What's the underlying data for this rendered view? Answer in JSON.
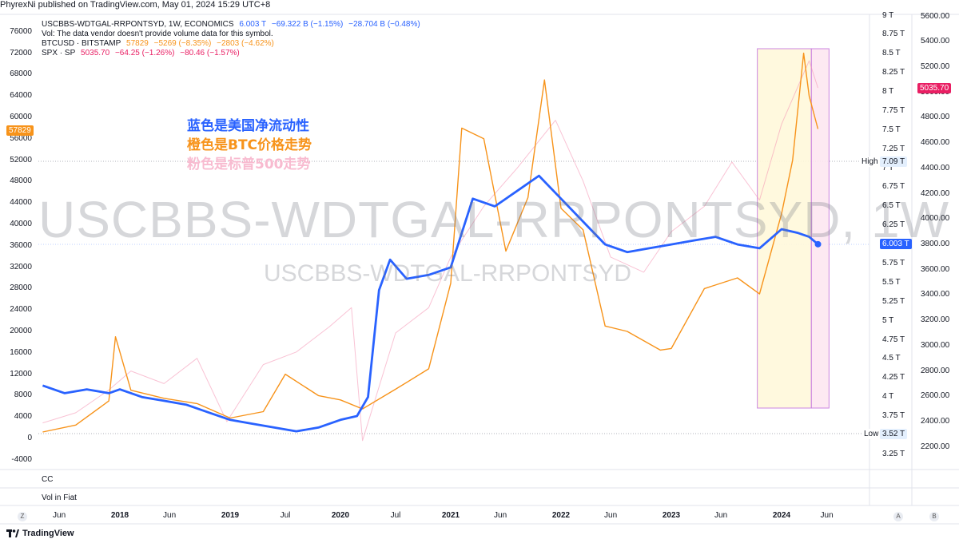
{
  "header": {
    "publish_text": "PhyrexNi published on TradingView.com, May 01, 2024 15:29 UTC+8"
  },
  "legend": {
    "line1": {
      "symbol": "USCBBS-WDTGAL-RRPONTSYD, 1W, ECONOMICS",
      "value": "6.003 T",
      "change": "−69.322 B (−1.15%)",
      "change2": "−28.704 B (−0.48%)"
    },
    "line2": {
      "text": "Vol: The data vendor doesn't provide volume data for this symbol."
    },
    "line3": {
      "symbol": "BTCUSD · BITSTAMP",
      "value": "57829",
      "change": "−5269 (−8.35%)",
      "change2": "−2803 (−4.62%)"
    },
    "line4": {
      "symbol": "SPX · SP",
      "value": "5035.70",
      "change": "−64.25 (−1.26%)",
      "change2": "−80.46 (−1.57%)"
    }
  },
  "annotations": {
    "blue": "蓝色是美国净流动性",
    "orange": "橙色是BTC价格走势",
    "pink": "粉色是标普500走势"
  },
  "watermark": {
    "big": "USCBBS-WDTGAL-RRPONTSYD, 1W",
    "small": "USCBBS-WDTGAL-RRPONTSYD"
  },
  "panes": {
    "cc": "CC",
    "vol": "Vol in Fiat"
  },
  "badges": {
    "btc_last": "57829",
    "spx_last": "5035.70",
    "liq_last": "6.003 T",
    "high_label": "High",
    "high_value": "7.09 T",
    "low_label": "Low",
    "low_value": "3.52 T"
  },
  "footer": {
    "logo_text": "TradingView",
    "z_btn": "Z",
    "a_btn": "A",
    "b_btn": "B"
  },
  "colors": {
    "liquidity": "#2962ff",
    "btc": "#f7931a",
    "spx": "#f48fb1",
    "highlight": "#fff9db",
    "box_border": "#c678dd",
    "badge_spx": "#e91e63"
  },
  "chart_data": {
    "type": "line",
    "title": "",
    "x_ticks": [
      "Jun",
      "2018",
      "Jun",
      "2019",
      "Jul",
      "2020",
      "Jul",
      "2021",
      "Jun",
      "2022",
      "Jun",
      "2023",
      "Jun",
      "2024",
      "Jun"
    ],
    "axes": {
      "left_btc": {
        "ticks": [
          "-4000",
          "0",
          "4000",
          "8000",
          "12000",
          "16000",
          "20000",
          "24000",
          "28000",
          "32000",
          "36000",
          "40000",
          "44000",
          "48000",
          "52000",
          "56000",
          "60000",
          "64000",
          "68000",
          "72000",
          "76000"
        ],
        "range": [
          -4000,
          76000
        ]
      },
      "right_liquidity": {
        "ticks": [
          "3.25 T",
          "3.52 T",
          "3.75 T",
          "4 T",
          "4.25 T",
          "4.5 T",
          "4.75 T",
          "5 T",
          "5.25 T",
          "5.5 T",
          "5.75 T",
          "6 T",
          "6.25 T",
          "6.5 T",
          "6.75 T",
          "7 T",
          "7.25 T",
          "7.5 T",
          "7.75 T",
          "8 T",
          "8.25 T",
          "8.5 T",
          "8.75 T",
          "9 T"
        ],
        "range": [
          3.25,
          9.0
        ]
      },
      "right_spx": {
        "ticks": [
          "2200.00",
          "2400.00",
          "2600.00",
          "2800.00",
          "3000.00",
          "3200.00",
          "3400.00",
          "3600.00",
          "3800.00",
          "4000.00",
          "4200.00",
          "4400.00",
          "4600.00",
          "4800.00",
          "5000.00",
          "5200.00",
          "5400.00",
          "5600.00"
        ],
        "range": [
          2200,
          5600
        ]
      }
    },
    "highlight_box": {
      "x_from": "2023-10",
      "x_to": "2024-04"
    },
    "series": [
      {
        "name": "USCBBS-WDTGAL-RRPONTSYD",
        "unit": "T",
        "color": "#2962ff",
        "x": [
          2017.3,
          2017.5,
          2017.7,
          2017.9,
          2018.0,
          2018.2,
          2018.4,
          2018.6,
          2018.8,
          2019.0,
          2019.2,
          2019.4,
          2019.6,
          2019.8,
          2020.0,
          2020.15,
          2020.25,
          2020.35,
          2020.45,
          2020.6,
          2020.8,
          2021.0,
          2021.2,
          2021.4,
          2021.6,
          2021.8,
          2022.0,
          2022.2,
          2022.4,
          2022.6,
          2022.8,
          2023.0,
          2023.2,
          2023.4,
          2023.6,
          2023.8,
          2024.0,
          2024.15,
          2024.25,
          2024.33
        ],
        "values": [
          4.15,
          4.05,
          4.1,
          4.05,
          4.1,
          4.0,
          3.95,
          3.9,
          3.8,
          3.7,
          3.65,
          3.6,
          3.55,
          3.6,
          3.7,
          3.75,
          4.0,
          5.4,
          5.8,
          5.55,
          5.6,
          5.7,
          6.6,
          6.5,
          6.7,
          6.9,
          6.6,
          6.3,
          6.0,
          5.9,
          5.95,
          6.0,
          6.05,
          6.1,
          6.0,
          5.95,
          6.2,
          6.15,
          6.1,
          6.003
        ]
      },
      {
        "name": "BTCUSD",
        "unit": "USD",
        "color": "#f7931a",
        "x": [
          2017.3,
          2017.6,
          2017.9,
          2017.96,
          2018.1,
          2018.4,
          2018.7,
          2019.0,
          2019.3,
          2019.5,
          2019.8,
          2020.0,
          2020.2,
          2020.5,
          2020.8,
          2021.0,
          2021.1,
          2021.3,
          2021.5,
          2021.7,
          2021.85,
          2022.0,
          2022.2,
          2022.4,
          2022.6,
          2022.9,
          2023.0,
          2023.3,
          2023.6,
          2023.8,
          2024.0,
          2024.1,
          2024.2,
          2024.25,
          2024.33
        ],
        "values": [
          1200,
          2500,
          7000,
          19000,
          9000,
          7500,
          6500,
          3800,
          5000,
          12000,
          8000,
          7200,
          5500,
          9200,
          13000,
          29000,
          58000,
          56000,
          35000,
          45000,
          67000,
          43000,
          39000,
          21000,
          20000,
          16500,
          16800,
          28000,
          30000,
          27000,
          42000,
          52000,
          72000,
          64000,
          57829
        ]
      },
      {
        "name": "SPX",
        "unit": "pt",
        "color": "#f48fb1",
        "x": [
          2017.3,
          2017.6,
          2017.9,
          2018.1,
          2018.4,
          2018.7,
          2018.97,
          2019.3,
          2019.6,
          2019.9,
          2020.1,
          2020.2,
          2020.5,
          2020.8,
          2021.0,
          2021.3,
          2021.6,
          2021.95,
          2022.2,
          2022.45,
          2022.75,
          2023.0,
          2023.3,
          2023.55,
          2023.8,
          2024.0,
          2024.25,
          2024.33
        ],
        "values": [
          2390,
          2470,
          2650,
          2800,
          2700,
          2900,
          2400,
          2850,
          2950,
          3150,
          3300,
          2250,
          3100,
          3300,
          3700,
          4100,
          4400,
          4780,
          4300,
          3700,
          3580,
          3900,
          4100,
          4450,
          4150,
          4750,
          5250,
          5035.7
        ]
      }
    ]
  }
}
